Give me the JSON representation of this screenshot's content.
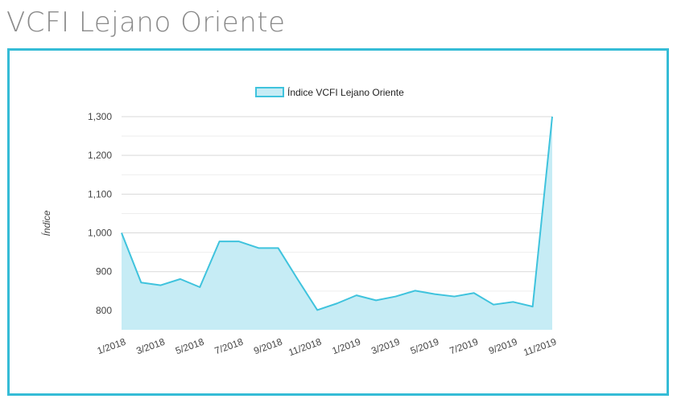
{
  "page": {
    "title": "VCFI Lejano Oriente"
  },
  "colors": {
    "accent": "#35bcd6",
    "area_fill": "#c6ecf5",
    "line": "#3fc3dd"
  },
  "chart_data": {
    "type": "area",
    "x": [
      "1/2018",
      "2/2018",
      "3/2018",
      "4/2018",
      "5/2018",
      "6/2018",
      "7/2018",
      "8/2018",
      "9/2018",
      "10/2018",
      "11/2018",
      "12/2018",
      "1/2019",
      "2/2019",
      "3/2019",
      "4/2019",
      "5/2019",
      "6/2019",
      "7/2019",
      "8/2019",
      "9/2019",
      "10/2019",
      "11/2019"
    ],
    "xticks": [
      "1/2018",
      "3/2018",
      "5/2018",
      "7/2018",
      "9/2018",
      "11/2018",
      "1/2019",
      "3/2019",
      "5/2019",
      "7/2019",
      "9/2019",
      "11/2019"
    ],
    "series": [
      {
        "name": "Índice VCFI Lejano Oriente",
        "values": [
          1000,
          872,
          865,
          881,
          860,
          978,
          978,
          961,
          961,
          880,
          801,
          818,
          839,
          826,
          836,
          851,
          842,
          836,
          845,
          815,
          822,
          810,
          1300
        ]
      }
    ],
    "ylabel": "Índice",
    "ylim": [
      750,
      1300
    ],
    "yticks": [
      800,
      900,
      1000,
      1100,
      1200,
      1300
    ],
    "ytick_labels": [
      "800",
      "900",
      "1,000",
      "1,100",
      "1,200",
      "1,300"
    ],
    "grid": true,
    "legend": "top"
  }
}
